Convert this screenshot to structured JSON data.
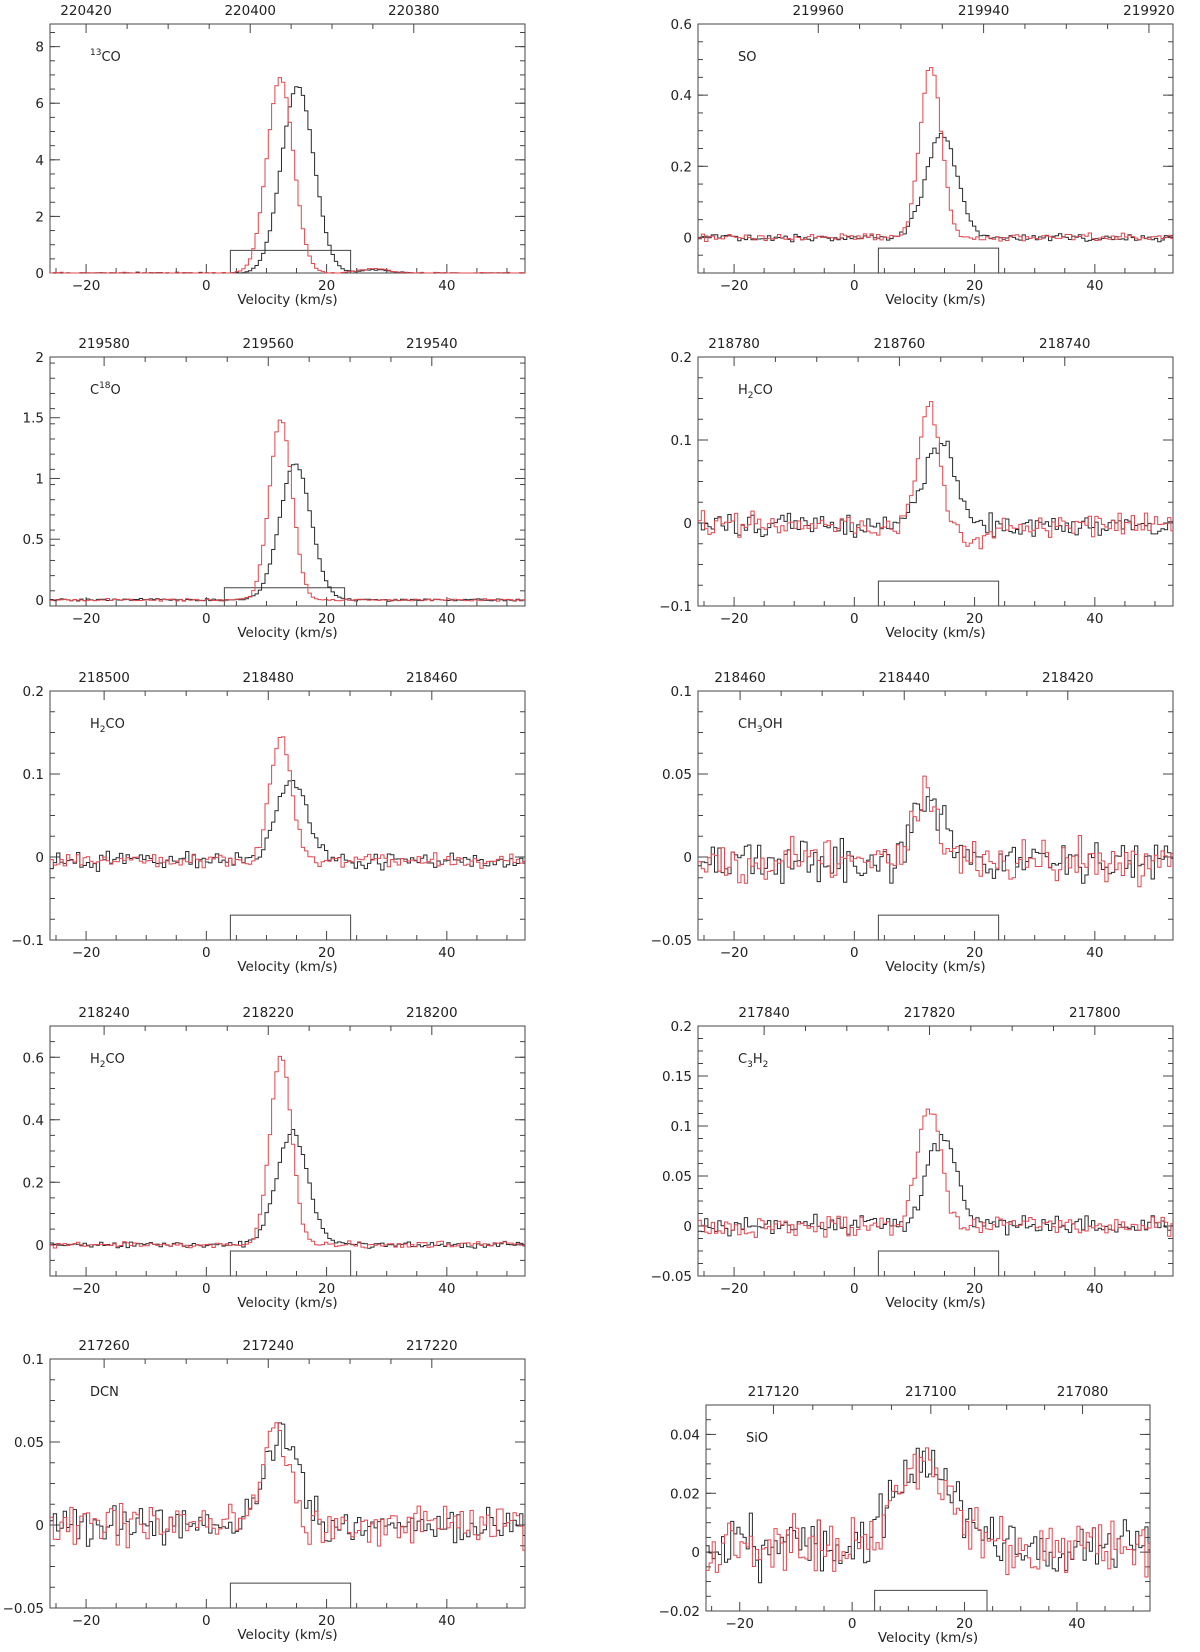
{
  "colors": {
    "axis": "#444444",
    "series_black": "#2a2a2a",
    "series_red": "#e0474f"
  },
  "chart_data": [
    {
      "type": "line",
      "step": true,
      "label_main": "CO",
      "label_sup": "13",
      "label_sup_pos": "before",
      "xlabel": "Velocity (km/s)",
      "xlim": [
        -26,
        53
      ],
      "xticks": [
        -20,
        0,
        20,
        40
      ],
      "xtick_labels": [
        "−20",
        "0",
        "20",
        "40"
      ],
      "ylim": [
        0,
        8.8
      ],
      "yticks": [
        0,
        2,
        4,
        6,
        8
      ],
      "ytick_labels": [
        "0",
        "2",
        "4",
        "6",
        "8"
      ],
      "top_ticks": [
        {
          "v": -20,
          "label": "220420"
        },
        {
          "v": 7.3,
          "label": "220400"
        },
        {
          "v": 34.5,
          "label": "220380"
        }
      ],
      "box": [
        4,
        24,
        0.8
      ],
      "series": [
        {
          "color": "#2a2a2a",
          "base": 0,
          "profile": [
            {
              "amp": 6.6,
              "center": 15.2,
              "sigma": 2.7
            },
            {
              "amp": 0.12,
              "center": 28,
              "sigma": 2.5
            }
          ],
          "noise": 0.02
        },
        {
          "color": "#e0474f",
          "base": 0,
          "profile": [
            {
              "amp": 6.9,
              "center": 12.3,
              "sigma": 2.2
            },
            {
              "amp": 0.15,
              "center": 28,
              "sigma": 2.5
            }
          ],
          "noise": 0.02
        }
      ]
    },
    {
      "type": "line",
      "step": true,
      "label_main": "SO",
      "xlabel": "Velocity (km/s)",
      "xlim": [
        -26,
        53
      ],
      "xticks": [
        -20,
        0,
        20,
        40
      ],
      "xtick_labels": [
        "−20",
        "0",
        "20",
        "40"
      ],
      "ylim": [
        -0.1,
        0.6
      ],
      "yticks": [
        0,
        0.2,
        0.4,
        0.6
      ],
      "ytick_labels": [
        "0",
        "0.2",
        "0.4",
        "0.6"
      ],
      "top_ticks": [
        {
          "v": -6,
          "label": "219960"
        },
        {
          "v": 21.5,
          "label": "219940"
        },
        {
          "v": 49,
          "label": "219920"
        }
      ],
      "box": [
        4,
        24,
        -0.03
      ],
      "series": [
        {
          "color": "#2a2a2a",
          "base": 0,
          "profile": [
            {
              "amp": 0.29,
              "center": 14.5,
              "sigma": 2.6
            }
          ],
          "noise": 0.009
        },
        {
          "color": "#e0474f",
          "base": 0,
          "profile": [
            {
              "amp": 0.48,
              "center": 12.7,
              "sigma": 1.8
            }
          ],
          "noise": 0.009
        }
      ]
    },
    {
      "type": "line",
      "step": true,
      "label_main": "C",
      "label_sup": "18",
      "label_after": "O",
      "label_sup_pos": "middle",
      "xlabel": "Velocity (km/s)",
      "xlim": [
        -26,
        53
      ],
      "xticks": [
        -20,
        0,
        20,
        40
      ],
      "xtick_labels": [
        "−20",
        "0",
        "20",
        "40"
      ],
      "ylim": [
        -0.05,
        2.0
      ],
      "yticks": [
        0,
        0.5,
        1,
        1.5,
        2
      ],
      "ytick_labels": [
        "0",
        "0.5",
        "1",
        "1.5",
        "2"
      ],
      "top_ticks": [
        {
          "v": -17,
          "label": "219580"
        },
        {
          "v": 10.3,
          "label": "219560"
        },
        {
          "v": 37.5,
          "label": "219540"
        }
      ],
      "box": [
        3,
        23,
        0.1
      ],
      "series": [
        {
          "color": "#2a2a2a",
          "base": 0,
          "profile": [
            {
              "amp": 1.12,
              "center": 14.8,
              "sigma": 2.6
            }
          ],
          "noise": 0.008
        },
        {
          "color": "#e0474f",
          "base": 0,
          "profile": [
            {
              "amp": 1.48,
              "center": 12.4,
              "sigma": 1.9
            }
          ],
          "noise": 0.008
        }
      ]
    },
    {
      "type": "line",
      "step": true,
      "label_main": "H",
      "label_sub": "2",
      "label_after": "CO",
      "xlabel": "Velocity (km/s)",
      "xlim": [
        -26,
        53
      ],
      "xticks": [
        -20,
        0,
        20,
        40
      ],
      "xtick_labels": [
        "−20",
        "0",
        "20",
        "40"
      ],
      "ylim": [
        -0.1,
        0.2
      ],
      "yticks": [
        -0.1,
        0,
        0.1,
        0.2
      ],
      "ytick_labels": [
        "−0.1",
        "0",
        "0.1",
        "0.2"
      ],
      "top_ticks": [
        {
          "v": -20,
          "label": "218780"
        },
        {
          "v": 7.5,
          "label": "218760"
        },
        {
          "v": 35,
          "label": "218740"
        }
      ],
      "box": [
        4,
        24,
        -0.07
      ],
      "series": [
        {
          "color": "#2a2a2a",
          "base": -0.003,
          "profile": [
            {
              "amp": 0.105,
              "center": 14.3,
              "sigma": 2.5
            }
          ],
          "noise": 0.012
        },
        {
          "color": "#e0474f",
          "base": -0.003,
          "profile": [
            {
              "amp": 0.145,
              "center": 12.4,
              "sigma": 1.8
            },
            {
              "amp": -0.02,
              "center": 20,
              "sigma": 3
            }
          ],
          "noise": 0.012
        }
      ]
    },
    {
      "type": "line",
      "step": true,
      "label_main": "H",
      "label_sub": "2",
      "label_after": "CO",
      "xlabel": "Velocity (km/s)",
      "xlim": [
        -26,
        53
      ],
      "xticks": [
        -20,
        0,
        20,
        40
      ],
      "xtick_labels": [
        "−20",
        "0",
        "20",
        "40"
      ],
      "ylim": [
        -0.1,
        0.2
      ],
      "yticks": [
        -0.1,
        0,
        0.1,
        0.2
      ],
      "ytick_labels": [
        "−0.1",
        "0",
        "0.1",
        "0.2"
      ],
      "top_ticks": [
        {
          "v": -17,
          "label": "218500"
        },
        {
          "v": 10.3,
          "label": "218480"
        },
        {
          "v": 37.5,
          "label": "218460"
        }
      ],
      "box": [
        4,
        24,
        -0.07
      ],
      "series": [
        {
          "color": "#2a2a2a",
          "base": -0.005,
          "profile": [
            {
              "amp": 0.1,
              "center": 14.3,
              "sigma": 2.5
            }
          ],
          "noise": 0.008
        },
        {
          "color": "#e0474f",
          "base": -0.005,
          "profile": [
            {
              "amp": 0.148,
              "center": 12.4,
              "sigma": 1.8
            }
          ],
          "noise": 0.008
        }
      ]
    },
    {
      "type": "line",
      "step": true,
      "label_main": "CH",
      "label_sub": "3",
      "label_after": "OH",
      "xlabel": "Velocity (km/s)",
      "xlim": [
        -26,
        53
      ],
      "xticks": [
        -20,
        0,
        20,
        40
      ],
      "xtick_labels": [
        "−20",
        "0",
        "20",
        "40"
      ],
      "ylim": [
        -0.05,
        0.1
      ],
      "yticks": [
        -0.05,
        0,
        0.05,
        0.1
      ],
      "ytick_labels": [
        "−0.05",
        "0",
        "0.05",
        "0.1"
      ],
      "top_ticks": [
        {
          "v": -19,
          "label": "218460"
        },
        {
          "v": 8.3,
          "label": "218440"
        },
        {
          "v": 35.5,
          "label": "218420"
        }
      ],
      "box": [
        4,
        24,
        -0.035
      ],
      "series": [
        {
          "color": "#2a2a2a",
          "base": -0.003,
          "profile": [
            {
              "amp": 0.04,
              "center": 12.5,
              "sigma": 2.6
            }
          ],
          "noise": 0.011
        },
        {
          "color": "#e0474f",
          "base": -0.003,
          "profile": [
            {
              "amp": 0.04,
              "center": 12.0,
              "sigma": 2.2
            }
          ],
          "noise": 0.011
        }
      ]
    },
    {
      "type": "line",
      "step": true,
      "label_main": "H",
      "label_sub": "2",
      "label_after": "CO",
      "xlabel": "Velocity (km/s)",
      "xlim": [
        -26,
        53
      ],
      "xticks": [
        -20,
        0,
        20,
        40
      ],
      "xtick_labels": [
        "−20",
        "0",
        "20",
        "40"
      ],
      "ylim": [
        -0.1,
        0.7
      ],
      "yticks": [
        0,
        0.2,
        0.4,
        0.6
      ],
      "ytick_labels": [
        "0",
        "0.2",
        "0.4",
        "0.6"
      ],
      "top_ticks": [
        {
          "v": -17,
          "label": "218240"
        },
        {
          "v": 10.3,
          "label": "218220"
        },
        {
          "v": 37.5,
          "label": "218200"
        }
      ],
      "box": [
        4,
        24,
        -0.02
      ],
      "series": [
        {
          "color": "#2a2a2a",
          "base": 0,
          "profile": [
            {
              "amp": 0.36,
              "center": 14.3,
              "sigma": 2.6
            }
          ],
          "noise": 0.008
        },
        {
          "color": "#e0474f",
          "base": 0,
          "profile": [
            {
              "amp": 0.6,
              "center": 12.4,
              "sigma": 1.8
            }
          ],
          "noise": 0.008
        }
      ]
    },
    {
      "type": "line",
      "step": true,
      "label_main": "C",
      "label_sub": "3",
      "label_after": "H",
      "label_sub2": "2",
      "xlabel": "Velocity (km/s)",
      "xlim": [
        -26,
        53
      ],
      "xticks": [
        -20,
        0,
        20,
        40
      ],
      "xtick_labels": [
        "−20",
        "0",
        "20",
        "40"
      ],
      "ylim": [
        -0.05,
        0.2
      ],
      "yticks": [
        -0.05,
        0,
        0.05,
        0.1,
        0.15,
        0.2
      ],
      "ytick_labels": [
        "−0.05",
        "0",
        "0.05",
        "0.1",
        "0.15",
        "0.2"
      ],
      "top_ticks": [
        {
          "v": -15,
          "label": "217840"
        },
        {
          "v": 12.5,
          "label": "217820"
        },
        {
          "v": 40,
          "label": "217800"
        }
      ],
      "box": [
        4,
        24,
        -0.025
      ],
      "series": [
        {
          "color": "#2a2a2a",
          "base": 0,
          "profile": [
            {
              "amp": 0.09,
              "center": 14.5,
              "sigma": 2.4
            }
          ],
          "noise": 0.008
        },
        {
          "color": "#e0474f",
          "base": 0,
          "profile": [
            {
              "amp": 0.12,
              "center": 12.5,
              "sigma": 1.9
            }
          ],
          "noise": 0.008
        }
      ]
    },
    {
      "type": "line",
      "step": true,
      "label_main": "DCN",
      "xlabel": "Velocity (km/s)",
      "xlim": [
        -26,
        53
      ],
      "xticks": [
        -20,
        0,
        20,
        40
      ],
      "xtick_labels": [
        "−20",
        "0",
        "20",
        "40"
      ],
      "ylim": [
        -0.05,
        0.1
      ],
      "yticks": [
        -0.05,
        0,
        0.05,
        0.1
      ],
      "ytick_labels": [
        "−0.05",
        "0",
        "0.05",
        "0.1"
      ],
      "top_ticks": [
        {
          "v": -17,
          "label": "217260"
        },
        {
          "v": 10.3,
          "label": "217240"
        },
        {
          "v": 37.5,
          "label": "217220"
        }
      ],
      "box": [
        4,
        24,
        -0.035
      ],
      "series": [
        {
          "color": "#2a2a2a",
          "base": 0.0,
          "profile": [
            {
              "amp": 0.055,
              "center": 12.5,
              "sigma": 2.8
            }
          ],
          "noise": 0.01
        },
        {
          "color": "#e0474f",
          "base": 0.0,
          "profile": [
            {
              "amp": 0.06,
              "center": 11.5,
              "sigma": 2.2
            }
          ],
          "noise": 0.01
        }
      ]
    },
    {
      "type": "line",
      "step": true,
      "label_main": "SiO",
      "xlabel": "Velocity (km/s)",
      "xlim": [
        -26,
        53
      ],
      "xticks": [
        -20,
        0,
        20,
        40
      ],
      "xtick_labels": [
        "−20",
        "0",
        "20",
        "40"
      ],
      "ylim": [
        -0.02,
        0.05
      ],
      "yticks": [
        -0.02,
        0,
        0.02,
        0.04
      ],
      "ytick_labels": [
        "−0.02",
        "0",
        "0.02",
        "0.04"
      ],
      "top_ticks": [
        {
          "v": -14,
          "label": "217120"
        },
        {
          "v": 14,
          "label": "217100"
        },
        {
          "v": 41,
          "label": "217080"
        }
      ],
      "box": [
        4,
        24,
        -0.013
      ],
      "series": [
        {
          "color": "#2a2a2a",
          "base": 0.002,
          "profile": [
            {
              "amp": 0.028,
              "center": 13.5,
              "sigma": 5.5
            }
          ],
          "noise": 0.009
        },
        {
          "color": "#e0474f",
          "base": 0.002,
          "profile": [
            {
              "amp": 0.028,
              "center": 12.5,
              "sigma": 5.0
            }
          ],
          "noise": 0.009
        }
      ]
    }
  ]
}
